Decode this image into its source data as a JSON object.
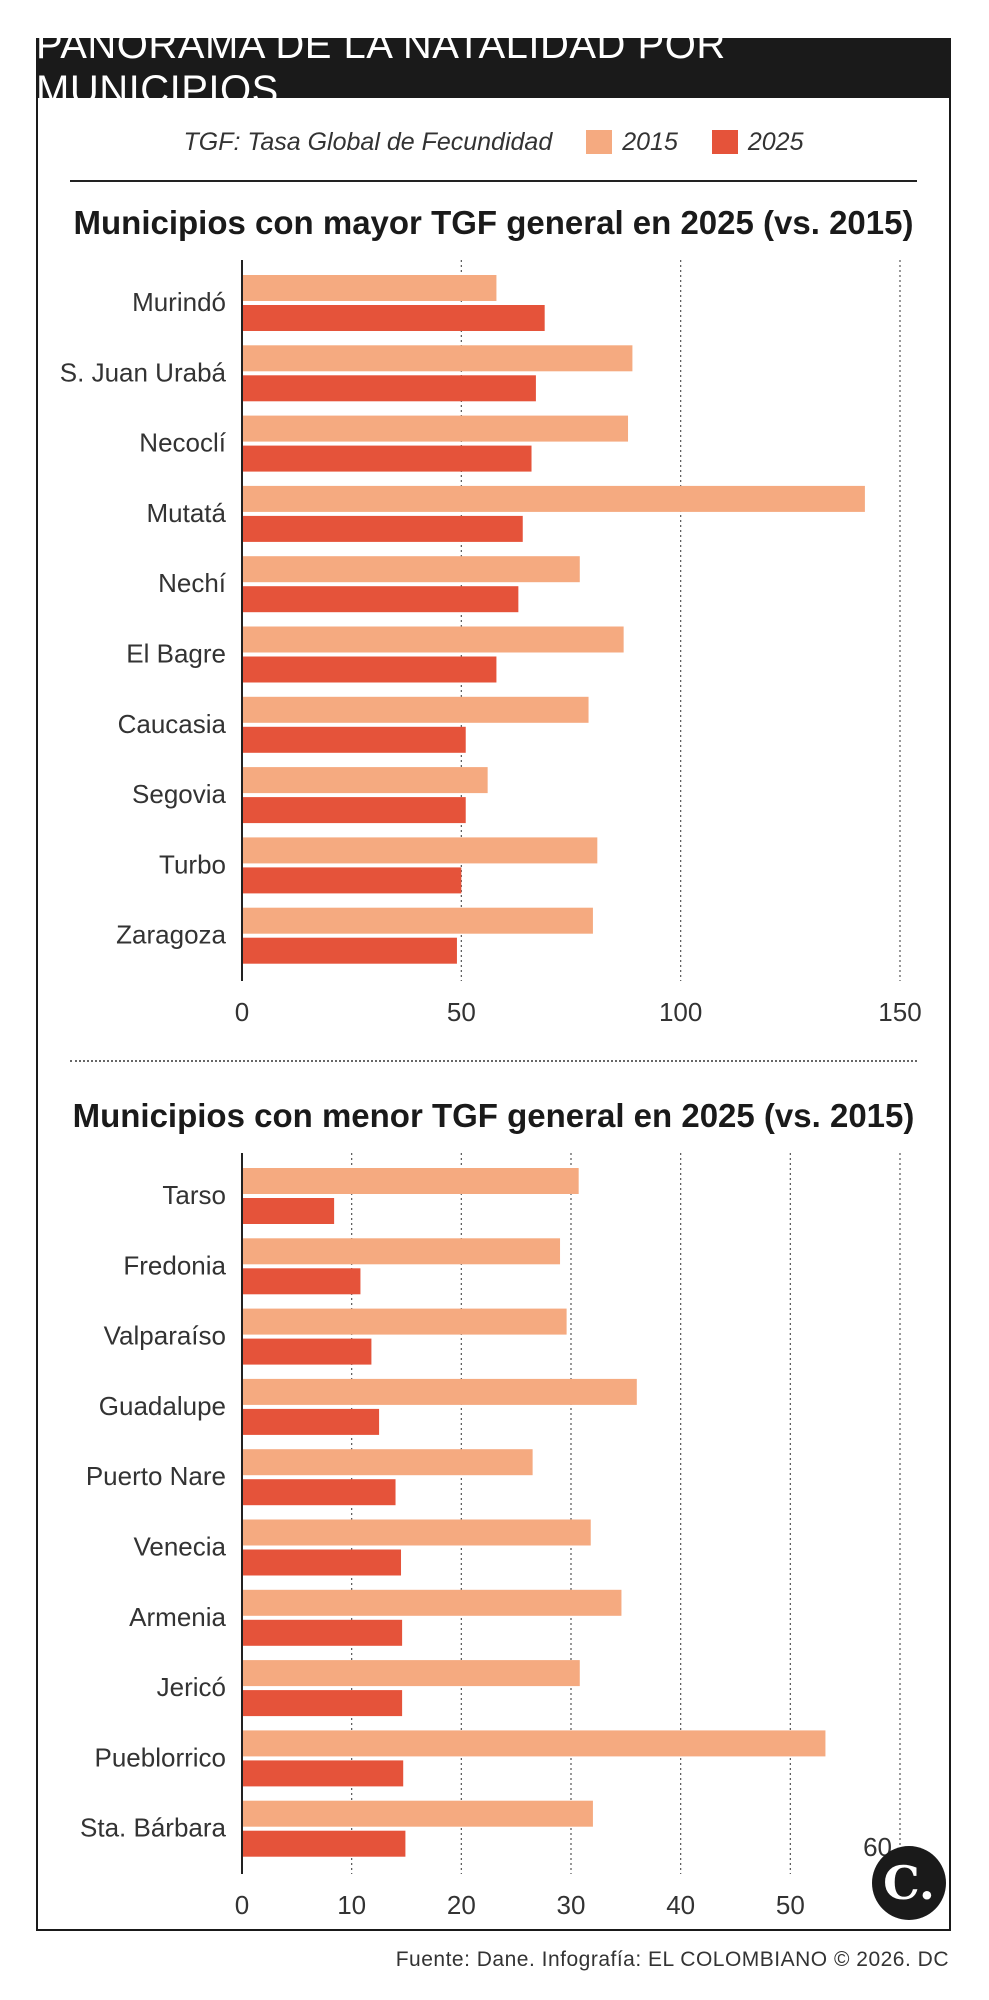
{
  "header": {
    "title": "PANORAMA DE LA NATALIDAD POR MUNICIPIOS"
  },
  "legend": {
    "label": "TGF: Tasa Global de Fecundidad",
    "items": [
      {
        "name": "2015",
        "color": "#F5AA80"
      },
      {
        "name": "2025",
        "color": "#E5533A"
      }
    ]
  },
  "chart_data": [
    {
      "type": "bar",
      "orientation": "horizontal",
      "title": "Municipios con mayor TGF general en 2025 (vs. 2015)",
      "categories": [
        "Murindó",
        "S. Juan Urabá",
        "Necoclí",
        "Mutatá",
        "Nechí",
        "El Bagre",
        "Caucasia",
        "Segovia",
        "Turbo",
        "Zaragoza"
      ],
      "series": [
        {
          "name": "2015",
          "color": "#F5AA80",
          "values": [
            58,
            89,
            88,
            142,
            77,
            87,
            79,
            56,
            81,
            80
          ]
        },
        {
          "name": "2025",
          "color": "#E5533A",
          "values": [
            69,
            67,
            66,
            64,
            63,
            58,
            51,
            51,
            50,
            49
          ]
        }
      ],
      "xlim": [
        0,
        150
      ],
      "xticks": [
        "0",
        "50",
        "100",
        "150"
      ],
      "grid": true
    },
    {
      "type": "bar",
      "orientation": "horizontal",
      "title": "Municipios con menor TGF general en 2025 (vs. 2015)",
      "categories": [
        "Tarso",
        "Fredonia",
        "Valparaíso",
        "Guadalupe",
        "Puerto Nare",
        "Venecia",
        "Armenia",
        "Jericó",
        "Pueblorrico",
        "Sta. Bárbara"
      ],
      "series": [
        {
          "name": "2015",
          "color": "#F5AA80",
          "values": [
            30.7,
            29,
            29.6,
            36,
            26.5,
            31.8,
            34.6,
            30.8,
            53.2,
            32
          ]
        },
        {
          "name": "2025",
          "color": "#E5533A",
          "values": [
            8.4,
            10.8,
            11.8,
            12.5,
            14,
            14.5,
            14.6,
            14.6,
            14.7,
            14.9
          ]
        }
      ],
      "xlim": [
        0,
        60
      ],
      "xticks": [
        "0",
        "10",
        "20",
        "30",
        "40",
        "50",
        "60"
      ],
      "grid": true
    }
  ],
  "source": "Fuente: Dane. Infografía: EL COLOMBIANO © 2026. DC",
  "logo_text": "C."
}
